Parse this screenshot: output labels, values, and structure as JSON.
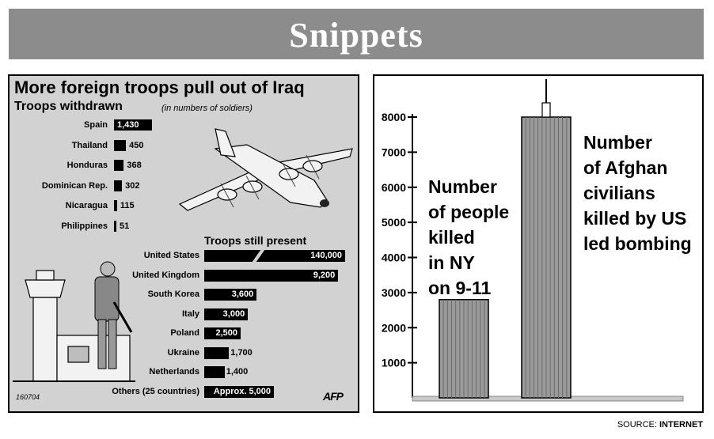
{
  "header": {
    "title": "Snippets"
  },
  "left_panel": {
    "title": "More foreign troops pull out of Iraq",
    "subtitle": "Troops withdrawn",
    "note": "(in numbers of soldiers)",
    "section2_title": "Troops still present",
    "code": "160704",
    "credit": "AFP"
  },
  "right_panel": {
    "label_small": "Number of people killed in NY on 9-11",
    "label_small_lines": [
      "Number",
      "of people",
      "killed",
      "in NY",
      "on 9-11"
    ],
    "label_large": "Number of Afghan civilians killed by US led bombing",
    "label_large_lines": [
      "Number",
      "of Afghan",
      "civilians",
      "killed by US",
      "led bombing"
    ]
  },
  "footer": {
    "source_prefix": "SOURCE: ",
    "source_value": "INTERNET"
  },
  "chart_data": [
    {
      "type": "bar",
      "orientation": "horizontal",
      "title": "Troops withdrawn",
      "categories": [
        "Spain",
        "Thailand",
        "Honduras",
        "Dominican Rep.",
        "Nicaragua",
        "Philippines"
      ],
      "values": [
        1430,
        450,
        368,
        302,
        115,
        51
      ],
      "value_labels": [
        "1,430",
        "450",
        "368",
        "302",
        "115",
        "51"
      ]
    },
    {
      "type": "bar",
      "orientation": "horizontal",
      "title": "Troops still present",
      "axis_break": true,
      "categories": [
        "United States",
        "United Kingdom",
        "South Korea",
        "Italy",
        "Poland",
        "Ukraine",
        "Netherlands",
        "Others (25 countries)"
      ],
      "values": [
        140000,
        9200,
        3600,
        3000,
        2500,
        1700,
        1400,
        5000
      ],
      "value_labels": [
        "140,000",
        "9,200",
        "3,600",
        "3,000",
        "2,500",
        "1,700",
        "1,400",
        "Approx. 5,000"
      ]
    },
    {
      "type": "bar",
      "orientation": "vertical",
      "categories": [
        "Number of people killed in NY on 9-11",
        "Number of Afghan civilians killed by US led bombing"
      ],
      "values": [
        2800,
        8000
      ],
      "ylim": [
        0,
        8000
      ],
      "yticks": [
        1000,
        2000,
        3000,
        4000,
        5000,
        6000,
        7000,
        8000
      ]
    }
  ]
}
